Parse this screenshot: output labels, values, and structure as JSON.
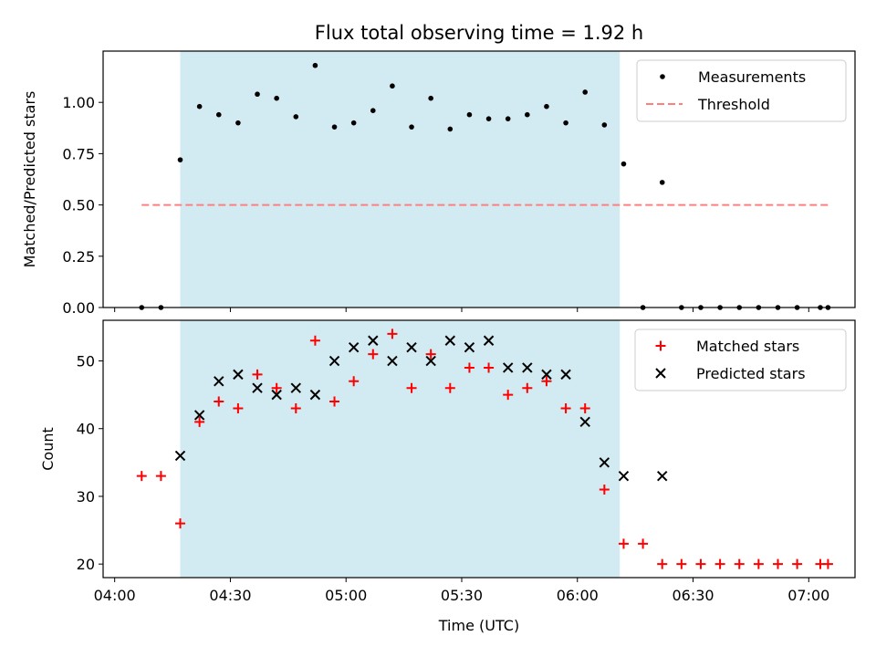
{
  "chart_data": {
    "type": "scatter",
    "title": "Flux total observing time = 1.92 h",
    "xlabel": "Time (UTC)",
    "x_ticks": [
      "04:00",
      "04:30",
      "05:00",
      "05:30",
      "06:00",
      "06:30",
      "07:00"
    ],
    "shaded_interval": [
      "04:17",
      "06:11"
    ],
    "shade_color": "#add8e6",
    "panels": [
      {
        "ylabel": "Matched/Predicted stars",
        "ylim": [
          0,
          1.25
        ],
        "y_ticks": [
          "0.00",
          "0.25",
          "0.50",
          "0.75",
          "1.00"
        ],
        "legend_position": "upper right",
        "series": [
          {
            "name": "Measurements",
            "marker": "dot",
            "color": "#000000",
            "points": [
              [
                "04:07",
                0.0
              ],
              [
                "04:12",
                0.0
              ],
              [
                "04:17",
                0.72
              ],
              [
                "04:22",
                0.98
              ],
              [
                "04:27",
                0.94
              ],
              [
                "04:32",
                0.9
              ],
              [
                "04:37",
                1.04
              ],
              [
                "04:42",
                1.02
              ],
              [
                "04:47",
                0.93
              ],
              [
                "04:52",
                1.18
              ],
              [
                "04:57",
                0.88
              ],
              [
                "05:02",
                0.9
              ],
              [
                "05:07",
                0.96
              ],
              [
                "05:12",
                1.08
              ],
              [
                "05:17",
                0.88
              ],
              [
                "05:22",
                1.02
              ],
              [
                "05:27",
                0.87
              ],
              [
                "05:32",
                0.94
              ],
              [
                "05:37",
                0.92
              ],
              [
                "05:42",
                0.92
              ],
              [
                "05:47",
                0.94
              ],
              [
                "05:52",
                0.98
              ],
              [
                "05:57",
                0.9
              ],
              [
                "06:02",
                1.05
              ],
              [
                "06:07",
                0.89
              ],
              [
                "06:12",
                0.7
              ],
              [
                "06:17",
                0.0
              ],
              [
                "06:22",
                0.61
              ],
              [
                "06:27",
                0.0
              ],
              [
                "06:32",
                0.0
              ],
              [
                "06:37",
                0.0
              ],
              [
                "06:42",
                0.0
              ],
              [
                "06:47",
                0.0
              ],
              [
                "06:52",
                0.0
              ],
              [
                "06:57",
                0.0
              ],
              [
                "07:03",
                0.0
              ],
              [
                "07:05",
                0.0
              ]
            ]
          },
          {
            "name": "Threshold",
            "marker": "dashed-line",
            "color": "#ff7f7f",
            "points": [
              [
                "04:07",
                0.5
              ],
              [
                "07:05",
                0.5
              ]
            ]
          }
        ]
      },
      {
        "ylabel": "Count",
        "ylim": [
          18,
          56
        ],
        "y_ticks": [
          "20",
          "30",
          "40",
          "50"
        ],
        "legend_position": "upper right",
        "series": [
          {
            "name": "Matched stars",
            "marker": "plus",
            "color": "#ff0000",
            "points": [
              [
                "04:07",
                33
              ],
              [
                "04:12",
                33
              ],
              [
                "04:17",
                26
              ],
              [
                "04:22",
                41
              ],
              [
                "04:27",
                44
              ],
              [
                "04:32",
                43
              ],
              [
                "04:37",
                48
              ],
              [
                "04:42",
                46
              ],
              [
                "04:47",
                43
              ],
              [
                "04:52",
                53
              ],
              [
                "04:57",
                44
              ],
              [
                "05:02",
                47
              ],
              [
                "05:07",
                51
              ],
              [
                "05:12",
                54
              ],
              [
                "05:17",
                46
              ],
              [
                "05:22",
                51
              ],
              [
                "05:27",
                46
              ],
              [
                "05:32",
                49
              ],
              [
                "05:37",
                49
              ],
              [
                "05:42",
                45
              ],
              [
                "05:47",
                46
              ],
              [
                "05:52",
                47
              ],
              [
                "05:57",
                43
              ],
              [
                "06:02",
                43
              ],
              [
                "06:07",
                31
              ],
              [
                "06:12",
                23
              ],
              [
                "06:17",
                23
              ],
              [
                "06:22",
                20
              ],
              [
                "06:27",
                20
              ],
              [
                "06:32",
                20
              ],
              [
                "06:37",
                20
              ],
              [
                "06:42",
                20
              ],
              [
                "06:47",
                20
              ],
              [
                "06:52",
                20
              ],
              [
                "06:57",
                20
              ],
              [
                "07:03",
                20
              ],
              [
                "07:05",
                20
              ]
            ]
          },
          {
            "name": "Predicted stars",
            "marker": "x",
            "color": "#000000",
            "points": [
              [
                "04:17",
                36
              ],
              [
                "04:22",
                42
              ],
              [
                "04:27",
                47
              ],
              [
                "04:32",
                48
              ],
              [
                "04:37",
                46
              ],
              [
                "04:42",
                45
              ],
              [
                "04:47",
                46
              ],
              [
                "04:52",
                45
              ],
              [
                "04:57",
                50
              ],
              [
                "05:02",
                52
              ],
              [
                "05:07",
                53
              ],
              [
                "05:12",
                50
              ],
              [
                "05:17",
                52
              ],
              [
                "05:22",
                50
              ],
              [
                "05:27",
                53
              ],
              [
                "05:32",
                52
              ],
              [
                "05:37",
                53
              ],
              [
                "05:42",
                49
              ],
              [
                "05:47",
                49
              ],
              [
                "05:52",
                48
              ],
              [
                "05:57",
                48
              ],
              [
                "06:02",
                41
              ],
              [
                "06:07",
                35
              ],
              [
                "06:12",
                33
              ],
              [
                "06:22",
                33
              ]
            ]
          }
        ]
      }
    ]
  }
}
